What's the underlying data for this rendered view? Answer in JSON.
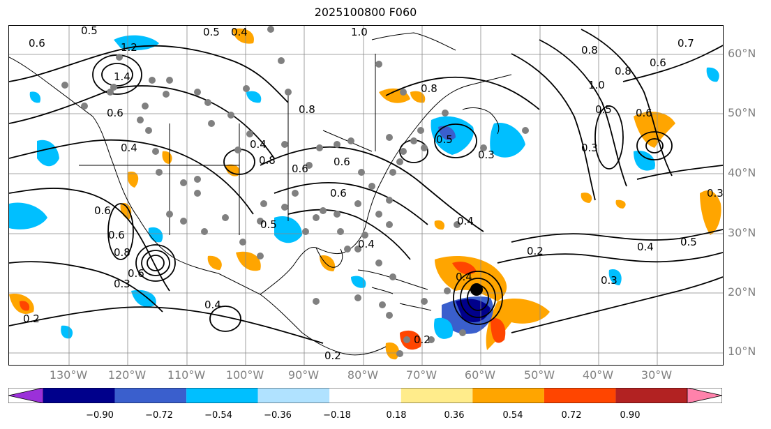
{
  "title": "2025100800 F060",
  "lat_labels": [
    "60°N",
    "50°N",
    "40°N",
    "30°N",
    "20°N",
    "10°N"
  ],
  "lon_labels": [
    "130°W",
    "120°W",
    "110°W",
    "100°W",
    "90°W",
    "80°W",
    "70°W",
    "60°W",
    "50°W",
    "40°W",
    "30°W"
  ],
  "colorbar": {
    "ticks": [
      "−0.90",
      "−0.72",
      "−0.54",
      "−0.36",
      "−0.18",
      "0.18",
      "0.36",
      "0.54",
      "0.72",
      "0.90"
    ],
    "colors": [
      "#9b30d9",
      "#00008b",
      "#3a5fcd",
      "#00bfff",
      "#b0e2ff",
      "#ffffff",
      "#ffec8b",
      "#ffa500",
      "#ff4500",
      "#b22222",
      "#ff82ab"
    ]
  },
  "contour_labels": [
    "0.5",
    "0.4",
    "0.5",
    "0.6",
    "1.2",
    "1.0",
    "1.4",
    "0.6",
    "0.8",
    "0.8",
    "0.8",
    "0.6",
    "0.4",
    "0.4",
    "0.6",
    "0.8",
    "0.6",
    "0.5",
    "0.3",
    "0.8",
    "1.0",
    "0.7",
    "0.6",
    "0.5",
    "0.6",
    "0.3",
    "0.3",
    "0.4",
    "0.5",
    "0.2",
    "0.4",
    "0.4",
    "0.3",
    "0.6",
    "0.8",
    "0.6",
    "0.4",
    "0.2",
    "0.2",
    "0.4",
    "0.2",
    "0.3",
    "0.5",
    "0.6"
  ],
  "cyclone_marker": {
    "lat": 21,
    "lon": "59°W"
  }
}
